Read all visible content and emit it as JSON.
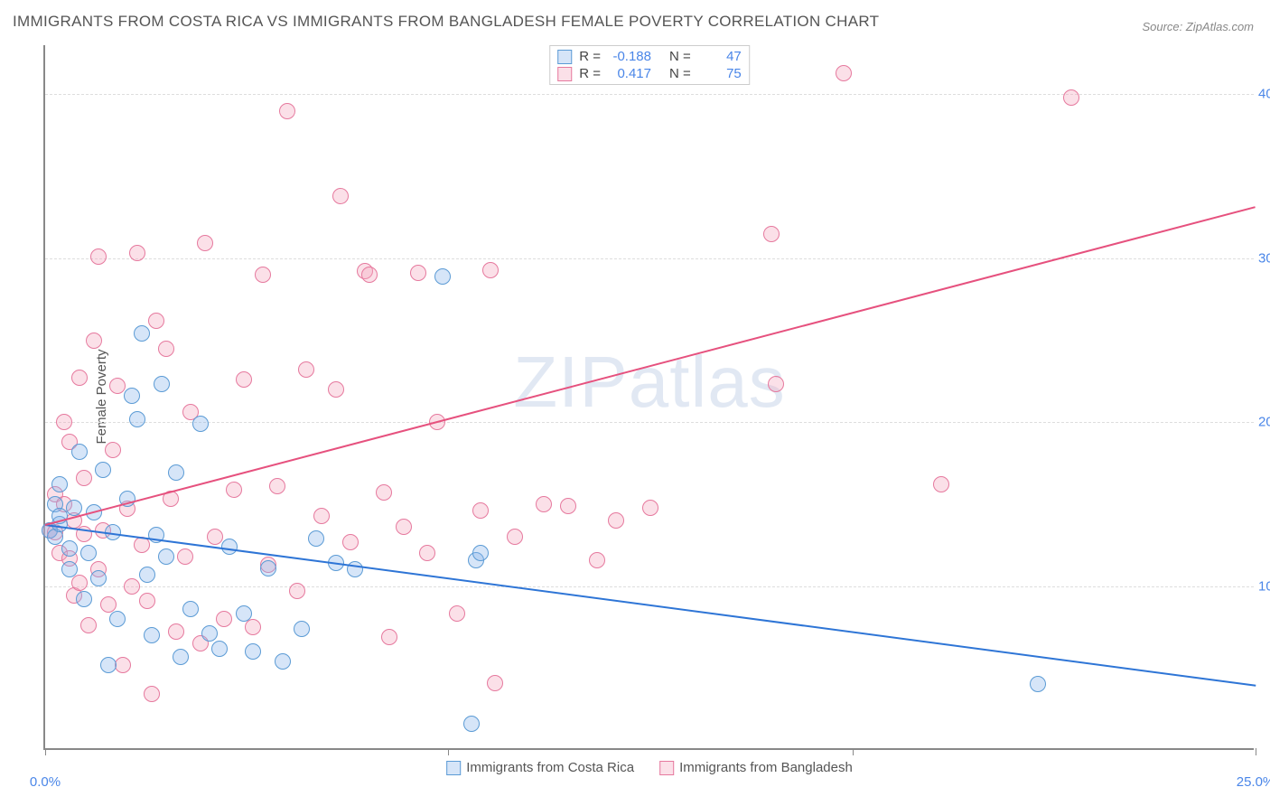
{
  "title": "IMMIGRANTS FROM COSTA RICA VS IMMIGRANTS FROM BANGLADESH FEMALE POVERTY CORRELATION CHART",
  "source": "Source: ZipAtlas.com",
  "ylabel": "Female Poverty",
  "watermark": "ZIPatlas",
  "chart": {
    "type": "scatter",
    "xlim": [
      0,
      25
    ],
    "ylim": [
      0,
      43
    ],
    "x_ticks": [
      0,
      8.33,
      16.67,
      25
    ],
    "x_tick_labels": [
      "0.0%",
      "",
      "",
      "25.0%"
    ],
    "y_ticks": [
      10,
      20,
      30,
      40
    ],
    "y_tick_labels": [
      "10.0%",
      "20.0%",
      "30.0%",
      "40.0%"
    ],
    "grid_color": "#dddddd",
    "axis_color": "#888888",
    "background_color": "#ffffff",
    "tick_label_color": "#4a86e8",
    "marker_radius": 9,
    "marker_border_width": 1.5,
    "line_width": 2,
    "title_fontsize": 17,
    "label_fontsize": 15
  },
  "series": [
    {
      "name": "Immigrants from Costa Rica",
      "color_fill": "rgba(137,180,235,0.35)",
      "color_stroke": "#5b9bd5",
      "line_color": "#2e75d6",
      "R": "-0.188",
      "N": "47",
      "trend": {
        "x1": 0,
        "y1": 13.8,
        "x2": 25,
        "y2": 4.0
      },
      "points": [
        [
          0.1,
          13.4
        ],
        [
          0.2,
          15.0
        ],
        [
          0.2,
          13.0
        ],
        [
          0.3,
          13.8
        ],
        [
          0.3,
          16.2
        ],
        [
          0.3,
          14.3
        ],
        [
          0.5,
          12.3
        ],
        [
          0.5,
          11.0
        ],
        [
          0.6,
          14.8
        ],
        [
          0.7,
          18.2
        ],
        [
          0.8,
          9.2
        ],
        [
          0.9,
          12.0
        ],
        [
          1.0,
          14.5
        ],
        [
          1.1,
          10.5
        ],
        [
          1.2,
          17.1
        ],
        [
          1.3,
          5.2
        ],
        [
          1.4,
          13.3
        ],
        [
          1.5,
          8.0
        ],
        [
          1.7,
          15.3
        ],
        [
          1.8,
          21.6
        ],
        [
          1.9,
          20.2
        ],
        [
          2.0,
          25.4
        ],
        [
          2.1,
          10.7
        ],
        [
          2.2,
          7.0
        ],
        [
          2.3,
          13.1
        ],
        [
          2.4,
          22.3
        ],
        [
          2.5,
          11.8
        ],
        [
          2.7,
          16.9
        ],
        [
          2.8,
          5.7
        ],
        [
          3.0,
          8.6
        ],
        [
          3.2,
          19.9
        ],
        [
          3.4,
          7.1
        ],
        [
          3.6,
          6.2
        ],
        [
          3.8,
          12.4
        ],
        [
          4.1,
          8.3
        ],
        [
          4.3,
          6.0
        ],
        [
          4.6,
          11.1
        ],
        [
          4.9,
          5.4
        ],
        [
          5.3,
          7.4
        ],
        [
          5.6,
          12.9
        ],
        [
          6.0,
          11.4
        ],
        [
          6.4,
          11.0
        ],
        [
          8.2,
          28.9
        ],
        [
          8.8,
          1.6
        ],
        [
          8.9,
          11.6
        ],
        [
          9.0,
          12.0
        ],
        [
          20.5,
          4.0
        ]
      ]
    },
    {
      "name": "Immigrants from Bangladesh",
      "color_fill": "rgba(244,166,188,0.35)",
      "color_stroke": "#e6799e",
      "line_color": "#e6517e",
      "R": "0.417",
      "N": "75",
      "trend": {
        "x1": 0,
        "y1": 13.8,
        "x2": 25,
        "y2": 33.2
      },
      "points": [
        [
          0.1,
          13.4
        ],
        [
          0.2,
          15.6
        ],
        [
          0.2,
          13.3
        ],
        [
          0.3,
          12.0
        ],
        [
          0.4,
          15.0
        ],
        [
          0.4,
          20.0
        ],
        [
          0.5,
          11.7
        ],
        [
          0.5,
          18.8
        ],
        [
          0.6,
          9.4
        ],
        [
          0.6,
          14.0
        ],
        [
          0.7,
          22.7
        ],
        [
          0.7,
          10.2
        ],
        [
          0.8,
          16.6
        ],
        [
          0.8,
          13.2
        ],
        [
          0.9,
          7.6
        ],
        [
          1.0,
          25.0
        ],
        [
          1.1,
          11.0
        ],
        [
          1.1,
          30.1
        ],
        [
          1.2,
          13.4
        ],
        [
          1.3,
          8.9
        ],
        [
          1.4,
          18.3
        ],
        [
          1.5,
          22.2
        ],
        [
          1.6,
          5.2
        ],
        [
          1.7,
          14.7
        ],
        [
          1.8,
          10.0
        ],
        [
          1.9,
          30.3
        ],
        [
          2.0,
          12.5
        ],
        [
          2.1,
          9.1
        ],
        [
          2.2,
          3.4
        ],
        [
          2.3,
          26.2
        ],
        [
          2.5,
          24.5
        ],
        [
          2.6,
          15.3
        ],
        [
          2.7,
          7.2
        ],
        [
          2.9,
          11.8
        ],
        [
          3.0,
          20.6
        ],
        [
          3.2,
          6.5
        ],
        [
          3.3,
          30.9
        ],
        [
          3.5,
          13.0
        ],
        [
          3.7,
          8.0
        ],
        [
          3.9,
          15.9
        ],
        [
          4.1,
          22.6
        ],
        [
          4.3,
          7.5
        ],
        [
          4.6,
          11.3
        ],
        [
          4.8,
          16.1
        ],
        [
          5.0,
          39.0
        ],
        [
          5.2,
          9.7
        ],
        [
          5.4,
          23.2
        ],
        [
          5.7,
          14.3
        ],
        [
          6.0,
          22.0
        ],
        [
          6.1,
          33.8
        ],
        [
          6.3,
          12.7
        ],
        [
          6.6,
          29.2
        ],
        [
          7.0,
          15.7
        ],
        [
          7.1,
          6.9
        ],
        [
          7.4,
          13.6
        ],
        [
          7.7,
          29.1
        ],
        [
          7.9,
          12.0
        ],
        [
          8.1,
          20.0
        ],
        [
          8.5,
          8.3
        ],
        [
          9.0,
          14.6
        ],
        [
          9.2,
          29.3
        ],
        [
          9.3,
          4.1
        ],
        [
          9.7,
          13.0
        ],
        [
          10.3,
          15.0
        ],
        [
          10.8,
          14.9
        ],
        [
          11.4,
          11.6
        ],
        [
          15.0,
          31.5
        ],
        [
          15.1,
          22.3
        ],
        [
          16.5,
          41.3
        ],
        [
          18.5,
          16.2
        ],
        [
          21.2,
          39.8
        ],
        [
          11.8,
          14.0
        ],
        [
          12.5,
          14.8
        ],
        [
          4.5,
          29.0
        ],
        [
          6.7,
          29.0
        ]
      ]
    }
  ],
  "legend": {
    "items": [
      "Immigrants from Costa Rica",
      "Immigrants from Bangladesh"
    ]
  }
}
